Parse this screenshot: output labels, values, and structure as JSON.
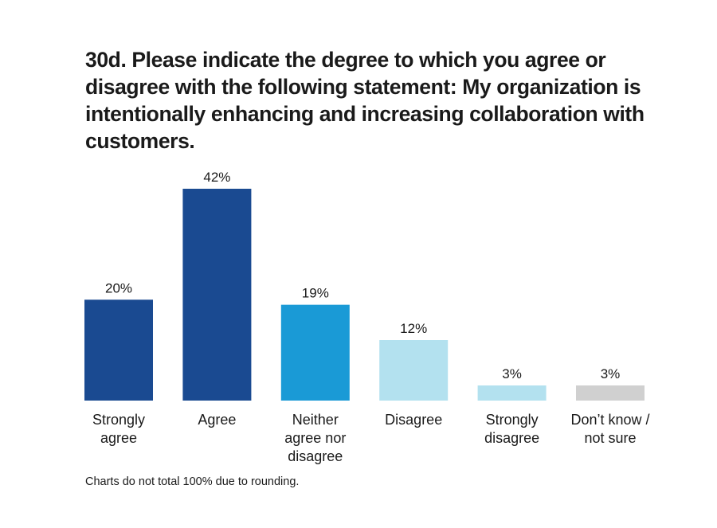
{
  "title": "30d. Please indicate the degree to which you agree or disagree with the following statement: My organization is intentionally enhancing and increasing collaboration with customers.",
  "footnote": "Charts do not total 100% due to rounding.",
  "chart_data": {
    "type": "bar",
    "categories": [
      [
        "Strongly",
        "agree"
      ],
      [
        "Agree"
      ],
      [
        "Neither",
        "agree nor",
        "disagree"
      ],
      [
        "Disagree"
      ],
      [
        "Strongly",
        "disagree"
      ],
      [
        "Don’t know /",
        "not sure"
      ]
    ],
    "values": [
      20,
      42,
      19,
      12,
      3,
      3
    ],
    "value_labels": [
      "20%",
      "42%",
      "19%",
      "12%",
      "3%",
      "3%"
    ],
    "colors": [
      "#1a4a91",
      "#1a4a91",
      "#1a9ad6",
      "#b3e1ef",
      "#b3e1ef",
      "#d0d0d0"
    ],
    "ylim": [
      0,
      42
    ],
    "grid": false,
    "legend": "none"
  }
}
